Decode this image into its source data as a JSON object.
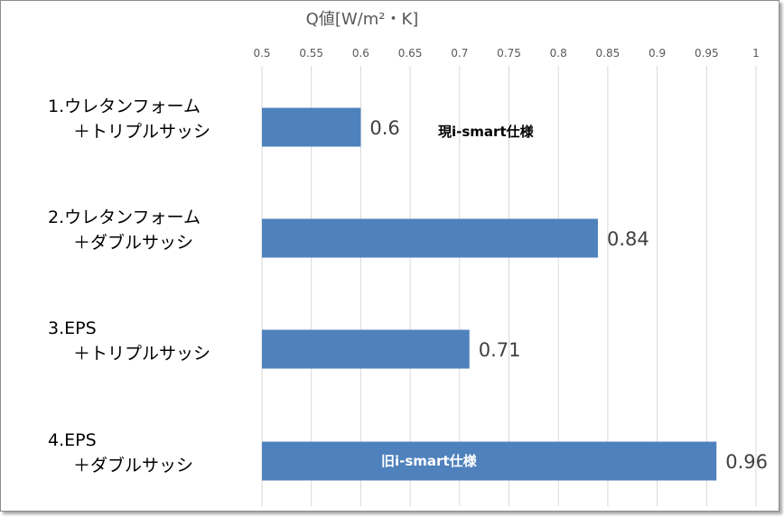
{
  "chart_data": {
    "type": "bar",
    "orientation": "horizontal",
    "title": "Q値[W/m²・K]",
    "xlim": [
      0.5,
      1
    ],
    "xticks": [
      "0.5",
      "0.55",
      "0.6",
      "0.65",
      "0.7",
      "0.75",
      "0.8",
      "0.85",
      "0.9",
      "0.95",
      "1"
    ],
    "grid": true,
    "categories": [
      [
        "1.ウレタンフォーム",
        "＋トリプルサッシ"
      ],
      [
        "2.ウレタンフォーム",
        "＋ダブルサッシ"
      ],
      [
        "3.EPS",
        "＋トリプルサッシ"
      ],
      [
        "4.EPS",
        "＋ダブルサッシ"
      ]
    ],
    "values": [
      0.6,
      0.84,
      0.71,
      0.96
    ],
    "data_labels": [
      "0.6",
      "0.84",
      "0.71",
      "0.96"
    ],
    "bar_color": "#4f81bd",
    "annotations": [
      {
        "text": "現i-smart仕様",
        "bar": 0,
        "placement": "right of label",
        "color": "#000000"
      },
      {
        "text": "旧i-smart仕様",
        "bar": 3,
        "placement": "inside bar",
        "color": "#ffffff"
      }
    ]
  }
}
